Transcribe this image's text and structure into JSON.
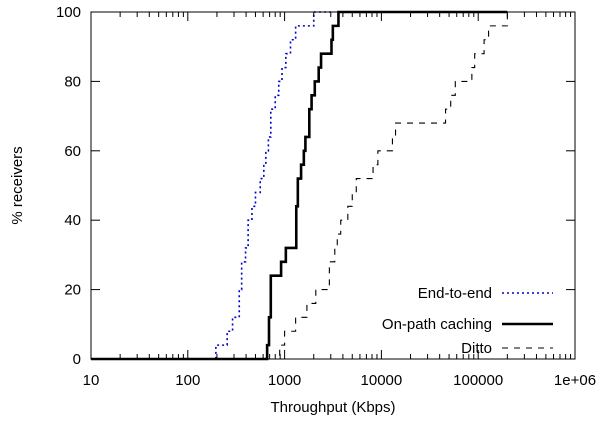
{
  "chart_data": {
    "type": "line",
    "xlabel": "Throughput (Kbps)",
    "ylabel": "% receivers",
    "xscale": "log",
    "xlim": [
      10,
      1000000
    ],
    "ylim": [
      0,
      100
    ],
    "xticks": [
      10,
      100,
      1000,
      10000,
      100000,
      1000000
    ],
    "xtick_labels": [
      "10",
      "100",
      "1000",
      "10000",
      "100000",
      "1e+06"
    ],
    "yticks": [
      0,
      20,
      40,
      60,
      80,
      100
    ],
    "ytick_labels": [
      "0",
      "20",
      "40",
      "60",
      "80",
      "100"
    ],
    "legend_position": "bottom-right",
    "grid": false,
    "series": [
      {
        "name": "End-to-end",
        "color": "#0000cc",
        "dash": "dotted",
        "step_points": [
          [
            10,
            0
          ],
          [
            195,
            0
          ],
          [
            195,
            4
          ],
          [
            255,
            4
          ],
          [
            255,
            8
          ],
          [
            290,
            8
          ],
          [
            290,
            12
          ],
          [
            340,
            12
          ],
          [
            340,
            20
          ],
          [
            360,
            20
          ],
          [
            360,
            28
          ],
          [
            395,
            28
          ],
          [
            395,
            32
          ],
          [
            420,
            32
          ],
          [
            420,
            40
          ],
          [
            460,
            40
          ],
          [
            460,
            44
          ],
          [
            500,
            44
          ],
          [
            500,
            48
          ],
          [
            560,
            48
          ],
          [
            560,
            52
          ],
          [
            610,
            52
          ],
          [
            610,
            56
          ],
          [
            640,
            56
          ],
          [
            640,
            60
          ],
          [
            680,
            60
          ],
          [
            680,
            64
          ],
          [
            720,
            64
          ],
          [
            720,
            72
          ],
          [
            800,
            72
          ],
          [
            800,
            76
          ],
          [
            870,
            76
          ],
          [
            870,
            80
          ],
          [
            940,
            80
          ],
          [
            940,
            84
          ],
          [
            1030,
            84
          ],
          [
            1030,
            88
          ],
          [
            1150,
            88
          ],
          [
            1150,
            92
          ],
          [
            1300,
            92
          ],
          [
            1300,
            96
          ],
          [
            2000,
            96
          ],
          [
            2000,
            100
          ],
          [
            3000,
            100
          ]
        ]
      },
      {
        "name": "On-path caching",
        "color": "#000000",
        "dash": "solid",
        "step_points": [
          [
            10,
            0
          ],
          [
            660,
            0
          ],
          [
            660,
            4
          ],
          [
            690,
            4
          ],
          [
            690,
            12
          ],
          [
            720,
            12
          ],
          [
            720,
            24
          ],
          [
            920,
            24
          ],
          [
            920,
            28
          ],
          [
            1030,
            28
          ],
          [
            1030,
            32
          ],
          [
            1320,
            32
          ],
          [
            1320,
            44
          ],
          [
            1370,
            44
          ],
          [
            1370,
            52
          ],
          [
            1480,
            52
          ],
          [
            1480,
            56
          ],
          [
            1580,
            56
          ],
          [
            1580,
            60
          ],
          [
            1640,
            60
          ],
          [
            1640,
            64
          ],
          [
            1800,
            64
          ],
          [
            1800,
            72
          ],
          [
            1900,
            72
          ],
          [
            1900,
            76
          ],
          [
            2050,
            76
          ],
          [
            2050,
            80
          ],
          [
            2250,
            80
          ],
          [
            2250,
            84
          ],
          [
            2380,
            84
          ],
          [
            2380,
            88
          ],
          [
            3050,
            88
          ],
          [
            3050,
            92
          ],
          [
            3150,
            92
          ],
          [
            3150,
            96
          ],
          [
            3600,
            96
          ],
          [
            3600,
            100
          ],
          [
            200000,
            100
          ]
        ]
      },
      {
        "name": "Ditto",
        "color": "#000000",
        "dash": "dashed",
        "step_points": [
          [
            10,
            0
          ],
          [
            890,
            0
          ],
          [
            890,
            4
          ],
          [
            1000,
            4
          ],
          [
            1000,
            8
          ],
          [
            1300,
            8
          ],
          [
            1300,
            12
          ],
          [
            1700,
            12
          ],
          [
            1700,
            16
          ],
          [
            2100,
            16
          ],
          [
            2100,
            20
          ],
          [
            2900,
            20
          ],
          [
            2900,
            28
          ],
          [
            3300,
            28
          ],
          [
            3300,
            32
          ],
          [
            3500,
            32
          ],
          [
            3500,
            36
          ],
          [
            3800,
            36
          ],
          [
            3800,
            40
          ],
          [
            4500,
            40
          ],
          [
            4500,
            44
          ],
          [
            5000,
            44
          ],
          [
            5000,
            48
          ],
          [
            5500,
            48
          ],
          [
            5500,
            52
          ],
          [
            8200,
            52
          ],
          [
            8200,
            56
          ],
          [
            9200,
            56
          ],
          [
            9200,
            60
          ],
          [
            13000,
            60
          ],
          [
            13000,
            64
          ],
          [
            14000,
            64
          ],
          [
            14000,
            68
          ],
          [
            46000,
            68
          ],
          [
            46000,
            72
          ],
          [
            52000,
            72
          ],
          [
            52000,
            76
          ],
          [
            58000,
            76
          ],
          [
            58000,
            80
          ],
          [
            86000,
            80
          ],
          [
            86000,
            84
          ],
          [
            92000,
            84
          ],
          [
            92000,
            88
          ],
          [
            115000,
            88
          ],
          [
            115000,
            92
          ],
          [
            128000,
            92
          ],
          [
            128000,
            96
          ],
          [
            200000,
            96
          ],
          [
            200000,
            100
          ]
        ]
      }
    ]
  }
}
